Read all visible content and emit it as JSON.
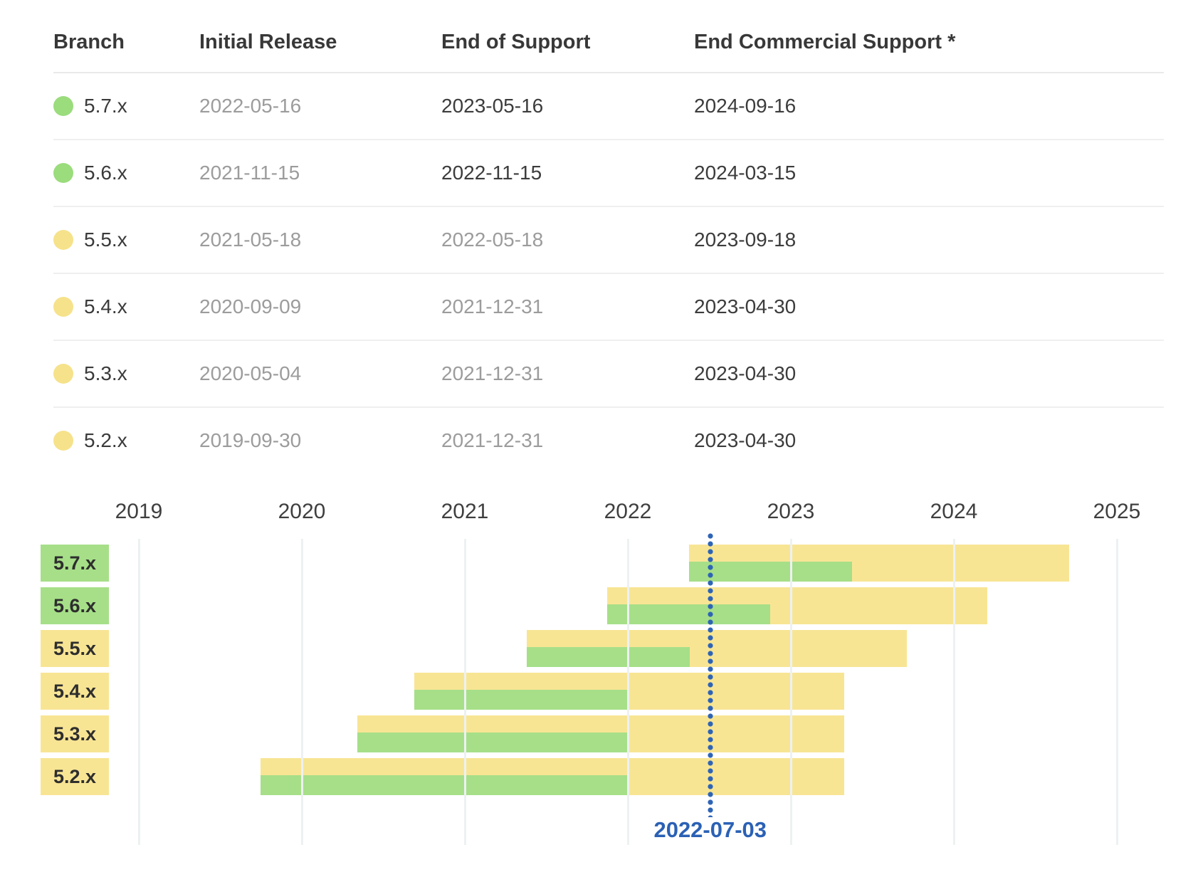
{
  "table": {
    "headers": [
      "Branch",
      "Initial Release",
      "End of Support",
      "End Commercial Support *"
    ],
    "rows": [
      {
        "branch": "5.7.x",
        "status_color": "green",
        "initial_release": "2022-05-16",
        "end_of_support": "2023-05-16",
        "end_commercial_support": "2024-09-16",
        "initial_release_muted": true,
        "end_of_support_muted": false,
        "end_commercial_support_muted": false
      },
      {
        "branch": "5.6.x",
        "status_color": "green",
        "initial_release": "2021-11-15",
        "end_of_support": "2022-11-15",
        "end_commercial_support": "2024-03-15",
        "initial_release_muted": true,
        "end_of_support_muted": false,
        "end_commercial_support_muted": false
      },
      {
        "branch": "5.5.x",
        "status_color": "yellow",
        "initial_release": "2021-05-18",
        "end_of_support": "2022-05-18",
        "end_commercial_support": "2023-09-18",
        "initial_release_muted": true,
        "end_of_support_muted": true,
        "end_commercial_support_muted": false
      },
      {
        "branch": "5.4.x",
        "status_color": "yellow",
        "initial_release": "2020-09-09",
        "end_of_support": "2021-12-31",
        "end_commercial_support": "2023-04-30",
        "initial_release_muted": true,
        "end_of_support_muted": true,
        "end_commercial_support_muted": false
      },
      {
        "branch": "5.3.x",
        "status_color": "yellow",
        "initial_release": "2020-05-04",
        "end_of_support": "2021-12-31",
        "end_commercial_support": "2023-04-30",
        "initial_release_muted": true,
        "end_of_support_muted": true,
        "end_commercial_support_muted": false
      },
      {
        "branch": "5.2.x",
        "status_color": "yellow",
        "initial_release": "2019-09-30",
        "end_of_support": "2021-12-31",
        "end_commercial_support": "2023-04-30",
        "initial_release_muted": true,
        "end_of_support_muted": true,
        "end_commercial_support_muted": false
      }
    ]
  },
  "chart_data": {
    "type": "bar",
    "subtype": "gantt-timeline",
    "title": "",
    "x_axis": {
      "tick_years": [
        "2019",
        "2020",
        "2021",
        "2022",
        "2023",
        "2024",
        "2025"
      ],
      "range": [
        "2019-01-01",
        "2025-12-31"
      ],
      "grid": true
    },
    "legend": "none",
    "colors": {
      "commercial_support_bar": "#f8e594",
      "full_support_bar": "#a6df88",
      "green_status": "#9bdc7d",
      "yellow_status": "#f6e28b",
      "marker_blue": "#2e64b6"
    },
    "today_marker": {
      "date": "2022-07-03",
      "label": "2022-07-03",
      "color": "#2e64b6",
      "style": "dotted-vertical-line"
    },
    "rows": [
      {
        "label": "5.7.x",
        "label_color": "green",
        "start": "2022-05-16",
        "full_support_end": "2023-05-16",
        "commercial_support_end": "2024-09-16"
      },
      {
        "label": "5.6.x",
        "label_color": "green",
        "start": "2021-11-15",
        "full_support_end": "2022-11-15",
        "commercial_support_end": "2024-03-15"
      },
      {
        "label": "5.5.x",
        "label_color": "yellow",
        "start": "2021-05-18",
        "full_support_end": "2022-05-18",
        "commercial_support_end": "2023-09-18"
      },
      {
        "label": "5.4.x",
        "label_color": "yellow",
        "start": "2020-09-09",
        "full_support_end": "2021-12-31",
        "commercial_support_end": "2023-04-30"
      },
      {
        "label": "5.3.x",
        "label_color": "yellow",
        "start": "2020-05-04",
        "full_support_end": "2021-12-31",
        "commercial_support_end": "2023-04-30"
      },
      {
        "label": "5.2.x",
        "label_color": "yellow",
        "start": "2019-09-30",
        "full_support_end": "2021-12-31",
        "commercial_support_end": "2023-04-30"
      }
    ]
  }
}
